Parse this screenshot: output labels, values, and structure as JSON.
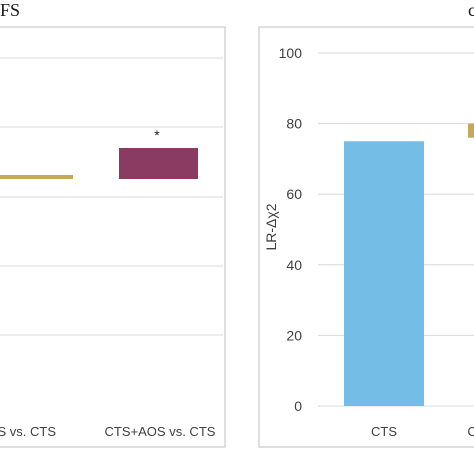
{
  "panel_left": {
    "label": "FS",
    "annotation": "*",
    "categories": [
      "CTS+RRS vs. CTS",
      "CTS+AOS vs. CTS"
    ],
    "colors": {
      "line": "#c8a65a",
      "box": "#8b3a62",
      "grid": "#d9d9d9",
      "frame": "#bfbfbf"
    }
  },
  "panel_right": {
    "label": "c",
    "ylabel": "LR-Δχ2",
    "colors": {
      "bar": "#74bde6",
      "partial": "#c8a65a",
      "grid": "#d9d9d9",
      "frame": "#bfbfbf"
    }
  },
  "chart_data": [
    {
      "type": "bar",
      "categories": [
        "CTS+RRS vs. CTS",
        "CTS+AOS vs. CTS"
      ],
      "series": [
        {
          "values": [
            null,
            null
          ]
        }
      ],
      "note_marks": [
        {
          "category": "CTS+RRS vs. CTS",
          "kind": "line"
        },
        {
          "category": "CTS+AOS vs. CTS",
          "kind": "range",
          "annotation": "*"
        }
      ],
      "xlabel": "",
      "ylabel": "",
      "grid": true
    },
    {
      "type": "bar",
      "categories": [
        "CTS",
        "CT"
      ],
      "series": [
        {
          "values": [
            75,
            null
          ]
        }
      ],
      "partial_mark": {
        "category": "CT",
        "low": 76,
        "high": 80
      },
      "xlabel": "",
      "ylabel": "LR-Δχ2",
      "ylim": [
        0,
        100
      ],
      "yticks": [
        0,
        20,
        40,
        60,
        80,
        100
      ],
      "grid": true
    }
  ]
}
